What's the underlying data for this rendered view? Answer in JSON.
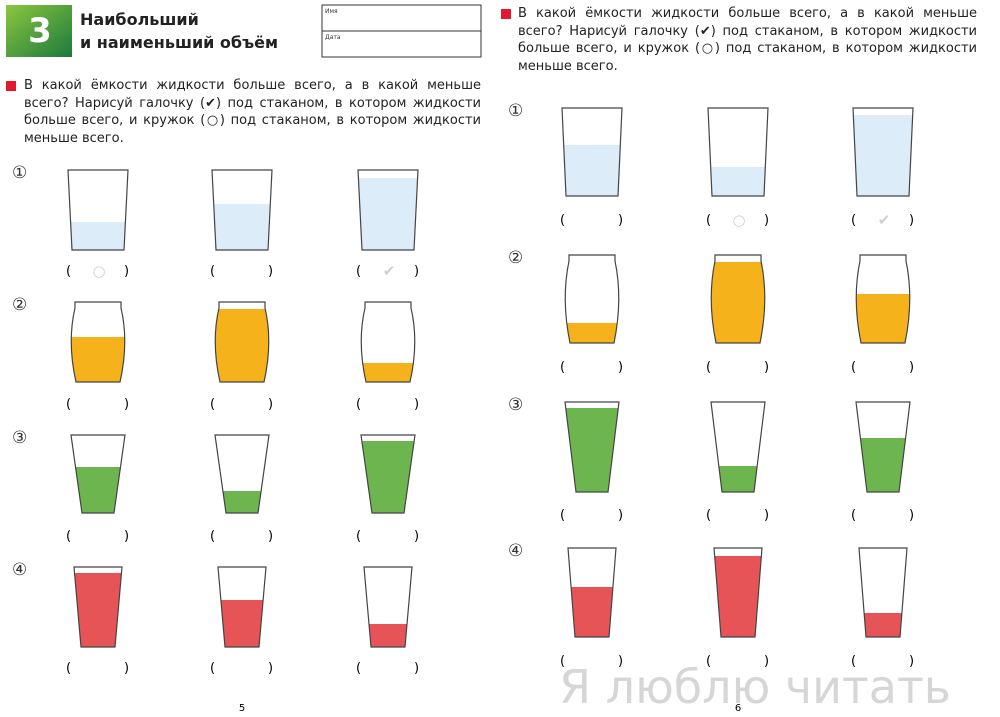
{
  "header": {
    "badge": "3",
    "title_line1": "Наибольший",
    "title_line2": "и наименьший объём",
    "name_label": "Имя",
    "date_label": "Дата"
  },
  "left_page": {
    "instruction": "В какой ёмкости жидкости больше всего, а в какой меньше всего? Нарисуй галочку (✔) под стаканом, в котором жидкости больше всего, и кружок (○) под стаканом, в котором жидкости меньше всего.",
    "rows": [
      {
        "label": "①",
        "answers": [
          {
            "open": "(",
            "hint": "○",
            "close": ")"
          },
          {
            "open": "(",
            "close": ")"
          },
          {
            "open": "(",
            "hint": "✔",
            "close": ")"
          }
        ]
      },
      {
        "label": "②",
        "answers": [
          {
            "open": "(",
            "close": ")"
          },
          {
            "open": "(",
            "close": ")"
          },
          {
            "open": "(",
            "close": ")"
          }
        ]
      },
      {
        "label": "③",
        "answers": [
          {
            "open": "(",
            "close": ")"
          },
          {
            "open": "(",
            "close": ")"
          },
          {
            "open": "(",
            "close": ")"
          }
        ]
      },
      {
        "label": "④",
        "answers": [
          {
            "open": "(",
            "close": ")"
          },
          {
            "open": "(",
            "close": ")"
          },
          {
            "open": "(",
            "close": ")"
          }
        ]
      }
    ],
    "page_number": "5"
  },
  "right_page": {
    "instruction": "В какой ёмкости жидкости больше всего, а в какой меньше всего? Нарисуй галочку (✔) под стаканом, в котором жидкости больше всего, и кружок (○) под стаканом, в котором жидкости меньше всего.",
    "rows": [
      {
        "label": "①",
        "answers": [
          {
            "open": "(",
            "close": ")"
          },
          {
            "open": "(",
            "hint": "○",
            "close": ")"
          },
          {
            "open": "(",
            "hint": "✔",
            "close": ")"
          }
        ]
      },
      {
        "label": "②",
        "answers": [
          {
            "open": "(",
            "close": ")"
          },
          {
            "open": "(",
            "close": ")"
          },
          {
            "open": "(",
            "close": ")"
          }
        ]
      },
      {
        "label": "③",
        "answers": [
          {
            "open": "(",
            "close": ")"
          },
          {
            "open": "(",
            "close": ")"
          },
          {
            "open": "(",
            "close": ")"
          }
        ]
      },
      {
        "label": "④",
        "answers": [
          {
            "open": "(",
            "close": ")"
          },
          {
            "open": "(",
            "close": ")"
          },
          {
            "open": "(",
            "close": ")"
          }
        ]
      }
    ],
    "page_number": "6"
  },
  "watermark": "Я люблю читать"
}
